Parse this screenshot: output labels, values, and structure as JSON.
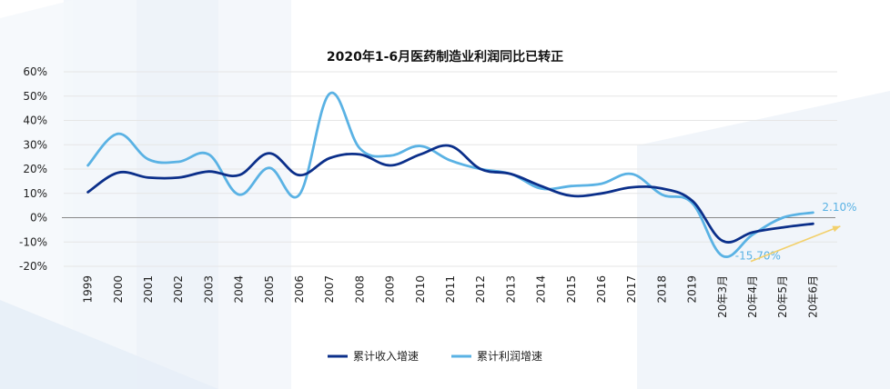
{
  "chart_data": {
    "type": "line",
    "title": "2020年1-6月医药制造业利润同比已转正",
    "xlabel": "",
    "ylabel": "",
    "x": [
      "1999",
      "2000",
      "2001",
      "2002",
      "2003",
      "2004",
      "2005",
      "2006",
      "2007",
      "2008",
      "2009",
      "2010",
      "2011",
      "2012",
      "2013",
      "2014",
      "2015",
      "2016",
      "2017",
      "2018",
      "2019",
      "20年3月",
      "20年4月",
      "20年5月",
      "20年6月"
    ],
    "ylim": [
      -20,
      60
    ],
    "yticks": [
      "-20%",
      "-10%",
      "0%",
      "10%",
      "20%",
      "30%",
      "40%",
      "50%",
      "60%"
    ],
    "grid": true,
    "series": [
      {
        "name": "累计收入增速",
        "color": "#0b2f8a",
        "values": [
          10.5,
          18.5,
          16.5,
          16.5,
          19.0,
          17.5,
          26.5,
          17.5,
          24.5,
          26.0,
          21.5,
          26.0,
          29.5,
          20.0,
          18.0,
          13.0,
          9.0,
          10.0,
          12.5,
          12.0,
          7.0,
          -9.5,
          -6.0,
          -4.0,
          -2.5
        ]
      },
      {
        "name": "累计利润增速",
        "color": "#5ab2e4",
        "values": [
          21.5,
          34.5,
          24.0,
          23.0,
          26.0,
          9.5,
          20.5,
          9.5,
          51.0,
          28.5,
          25.5,
          29.5,
          23.5,
          20.0,
          18.0,
          12.0,
          13.0,
          14.0,
          18.0,
          9.5,
          6.0,
          -15.7,
          -7.0,
          0.0,
          2.1
        ]
      }
    ],
    "annotations": [
      {
        "text": "-15.70%",
        "x": "20年3月",
        "y": -15.7
      },
      {
        "text": "2.10%",
        "x": "20年6月",
        "y": 2.1
      }
    ],
    "legend": "bottom",
    "arrow_color": "#f2d06b"
  }
}
